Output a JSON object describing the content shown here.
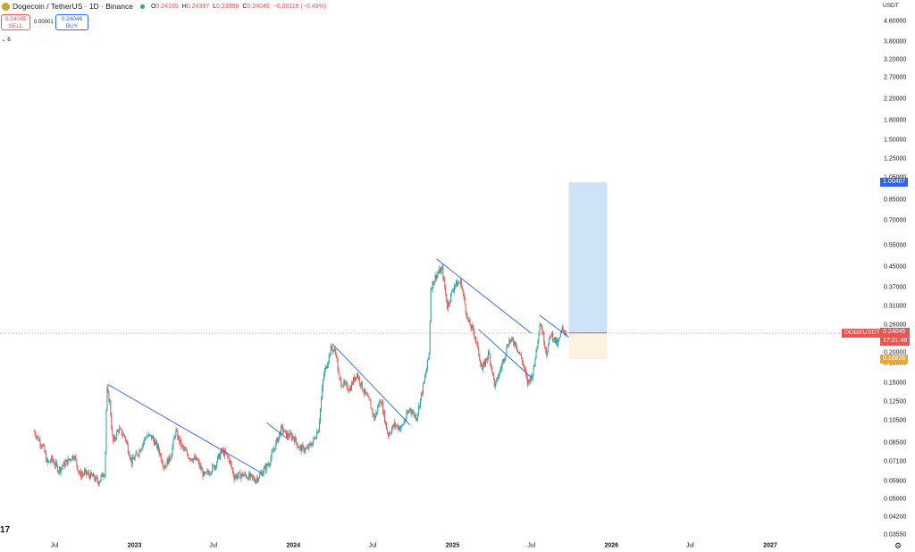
{
  "header": {
    "symbol_title": "Dogecoin / TetherUS · 1D · Binance",
    "ohlc": {
      "o_label": "O",
      "o": "0.24165",
      "h_label": "H",
      "h": "0.24397",
      "l_label": "L",
      "l": "0.23359",
      "c_label": "C",
      "c": "0.24045",
      "change": "−0.00119 (−0.49%)"
    },
    "sell_price": "0.24045",
    "sell_label": "SELL",
    "spread": "0.00001",
    "buy_price": "0.24046",
    "buy_label": "BUY",
    "indicator_count": "6",
    "logo_icon": "dogecoin-logo-icon",
    "status_icon": "market-open-dot-icon"
  },
  "price_scale_title": "USDT",
  "watermark_logo": "17",
  "colors": {
    "up": "#26a69a",
    "down": "#ef5350",
    "trendline": "#2962ff",
    "target_zone": "#cfe3f7",
    "stop_zone": "#fdf2e1",
    "tag_target": "#2962ff",
    "tag_entry": "#333333",
    "tag_price": "#ef5350",
    "tag_stop": "#f5a524"
  },
  "chart_data": {
    "type": "candlestick",
    "symbol": "DOGEUSDT",
    "y_scale": "log",
    "ylim": [
      0.034,
      6.0
    ],
    "x_ticks": [
      {
        "label": "Jul",
        "date": "2022-07-01"
      },
      {
        "label": "2023",
        "date": "2023-01-01"
      },
      {
        "label": "Jul",
        "date": "2023-07-01"
      },
      {
        "label": "2024",
        "date": "2024-01-01"
      },
      {
        "label": "Jul",
        "date": "2024-07-01"
      },
      {
        "label": "2025",
        "date": "2025-01-01"
      },
      {
        "label": "Jul",
        "date": "2025-07-01"
      },
      {
        "label": "2026",
        "date": "2026-01-01"
      },
      {
        "label": "Jul",
        "date": "2026-07-01"
      },
      {
        "label": "2027",
        "date": "2027-01-01"
      }
    ],
    "y_ticks": [
      "4.60000",
      "3.80000",
      "3.20000",
      "2.70000",
      "2.20000",
      "1.80000",
      "1.50000",
      "1.25000",
      "1.05000",
      "0.85000",
      "0.70000",
      "0.55000",
      "0.45000",
      "0.37000",
      "0.31000",
      "0.26000",
      "0.20000",
      "0.18000",
      "0.15000",
      "0.12500",
      "0.10500",
      "0.08500",
      "0.07100",
      "0.05900",
      "0.05000",
      "0.04200",
      "0.03550"
    ],
    "price_path": [
      [
        "2022-05-15",
        0.095
      ],
      [
        "2022-06-05",
        0.082
      ],
      [
        "2022-06-15",
        0.07
      ],
      [
        "2022-06-25",
        0.073
      ],
      [
        "2022-07-10",
        0.066
      ],
      [
        "2022-07-25",
        0.07
      ],
      [
        "2022-08-15",
        0.076
      ],
      [
        "2022-08-28",
        0.063
      ],
      [
        "2022-09-10",
        0.064
      ],
      [
        "2022-09-25",
        0.062
      ],
      [
        "2022-10-10",
        0.059
      ],
      [
        "2022-10-25",
        0.065
      ],
      [
        "2022-10-29",
        0.142
      ],
      [
        "2022-11-05",
        0.125
      ],
      [
        "2022-11-12",
        0.085
      ],
      [
        "2022-11-25",
        0.097
      ],
      [
        "2022-12-10",
        0.09
      ],
      [
        "2022-12-25",
        0.071
      ],
      [
        "2023-01-10",
        0.078
      ],
      [
        "2023-01-28",
        0.091
      ],
      [
        "2023-02-10",
        0.09
      ],
      [
        "2023-02-25",
        0.08
      ],
      [
        "2023-03-10",
        0.068
      ],
      [
        "2023-03-25",
        0.075
      ],
      [
        "2023-04-05",
        0.095
      ],
      [
        "2023-04-20",
        0.082
      ],
      [
        "2023-05-05",
        0.075
      ],
      [
        "2023-05-25",
        0.072
      ],
      [
        "2023-06-10",
        0.062
      ],
      [
        "2023-06-25",
        0.066
      ],
      [
        "2023-07-05",
        0.069
      ],
      [
        "2023-07-20",
        0.079
      ],
      [
        "2023-08-05",
        0.074
      ],
      [
        "2023-08-18",
        0.062
      ],
      [
        "2023-09-05",
        0.063
      ],
      [
        "2023-09-20",
        0.062
      ],
      [
        "2023-10-05",
        0.06
      ],
      [
        "2023-10-20",
        0.064
      ],
      [
        "2023-11-05",
        0.07
      ],
      [
        "2023-11-15",
        0.078
      ],
      [
        "2023-12-05",
        0.098
      ],
      [
        "2023-12-15",
        0.092
      ],
      [
        "2024-01-01",
        0.09
      ],
      [
        "2024-01-15",
        0.081
      ],
      [
        "2024-02-01",
        0.08
      ],
      [
        "2024-02-15",
        0.086
      ],
      [
        "2024-02-28",
        0.098
      ],
      [
        "2024-03-10",
        0.16
      ],
      [
        "2024-03-28",
        0.21
      ],
      [
        "2024-04-08",
        0.2
      ],
      [
        "2024-04-15",
        0.155
      ],
      [
        "2024-04-25",
        0.148
      ],
      [
        "2024-05-10",
        0.142
      ],
      [
        "2024-05-25",
        0.165
      ],
      [
        "2024-06-10",
        0.14
      ],
      [
        "2024-06-25",
        0.124
      ],
      [
        "2024-07-05",
        0.107
      ],
      [
        "2024-07-20",
        0.13
      ],
      [
        "2024-08-05",
        0.092
      ],
      [
        "2024-08-20",
        0.101
      ],
      [
        "2024-09-05",
        0.098
      ],
      [
        "2024-09-25",
        0.118
      ],
      [
        "2024-10-10",
        0.108
      ],
      [
        "2024-10-30",
        0.16
      ],
      [
        "2024-11-08",
        0.2
      ],
      [
        "2024-11-12",
        0.37
      ],
      [
        "2024-11-25",
        0.42
      ],
      [
        "2024-12-08",
        0.44
      ],
      [
        "2024-12-20",
        0.31
      ],
      [
        "2025-01-05",
        0.38
      ],
      [
        "2025-01-20",
        0.39
      ],
      [
        "2025-02-05",
        0.27
      ],
      [
        "2025-02-20",
        0.24
      ],
      [
        "2025-03-10",
        0.17
      ],
      [
        "2025-03-25",
        0.2
      ],
      [
        "2025-04-08",
        0.145
      ],
      [
        "2025-04-25",
        0.18
      ],
      [
        "2025-05-10",
        0.225
      ],
      [
        "2025-05-25",
        0.22
      ],
      [
        "2025-06-10",
        0.185
      ],
      [
        "2025-06-22",
        0.15
      ],
      [
        "2025-07-05",
        0.165
      ],
      [
        "2025-07-21",
        0.27
      ],
      [
        "2025-08-05",
        0.2
      ],
      [
        "2025-08-15",
        0.24
      ],
      [
        "2025-08-30",
        0.215
      ],
      [
        "2025-09-10",
        0.25
      ],
      [
        "2025-09-20",
        0.24
      ]
    ],
    "trendlines": [
      {
        "from": [
          "2022-11-01",
          0.148
        ],
        "to": [
          "2023-10-20",
          0.064
        ]
      },
      {
        "from": [
          "2023-11-01",
          0.103
        ],
        "to": [
          "2023-12-20",
          0.088
        ]
      },
      {
        "from": [
          "2024-03-30",
          0.218
        ],
        "to": [
          "2024-09-25",
          0.101
        ]
      },
      {
        "from": [
          "2024-11-25",
          0.486
        ],
        "to": [
          "2025-07-01",
          0.24
        ]
      },
      {
        "from": [
          "2025-03-01",
          0.25
        ],
        "to": [
          "2025-07-01",
          0.158
        ]
      },
      {
        "from": [
          "2025-07-20",
          0.285
        ],
        "to": [
          "2025-09-25",
          0.232
        ]
      }
    ],
    "position": {
      "type": "long",
      "start": "2025-09-25",
      "end": "2025-12-22",
      "entry": 0.24108,
      "target": 1.00407,
      "stop": 0.18826
    },
    "current_price_line": 0.24045,
    "price_tags": [
      {
        "role": "target",
        "price": 1.00407,
        "label": "1.00407"
      },
      {
        "role": "entry",
        "price": 0.24108,
        "label": "0.24108"
      },
      {
        "role": "price",
        "price": 0.24045,
        "label": "0.24045",
        "symbol": "DOGEUSDT",
        "countdown": "17:21:48"
      },
      {
        "role": "stop",
        "price": 0.18826,
        "label": "0.18826"
      }
    ]
  }
}
